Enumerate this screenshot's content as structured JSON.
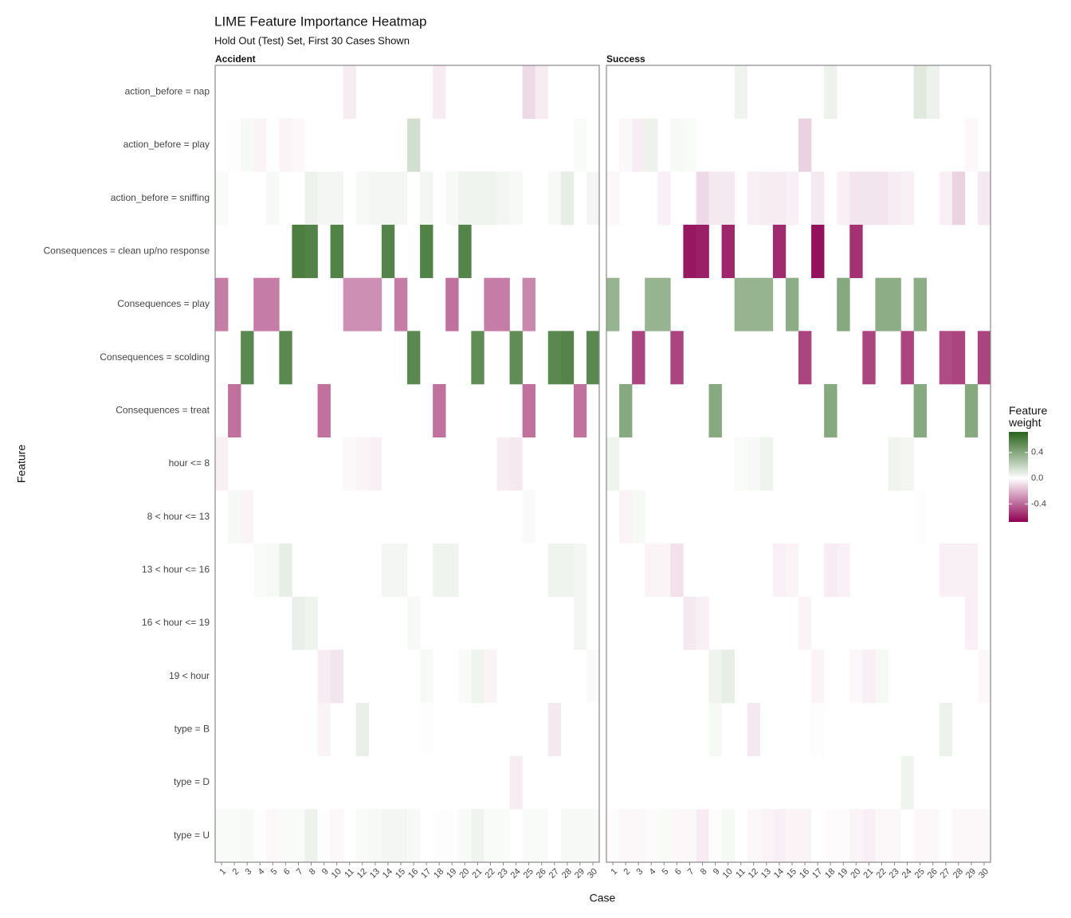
{
  "chart_data": {
    "type": "heatmap",
    "title": "LIME Feature Importance Heatmap",
    "subtitle": "Hold Out (Test) Set, First 30 Cases Shown",
    "x_label": "Case",
    "y_label": "Feature",
    "legend_title": "Feature weight",
    "low_color": "#8e0152",
    "mid_color": "#ffffff",
    "high_color": "#276419",
    "clim": [
      -0.68,
      0.72
    ],
    "cticks": [
      -0.4,
      {
        "value": 0,
        "label": "0.0"
      },
      0.4
    ],
    "features": [
      "action_before = nap",
      "action_before = play",
      "action_before = sniffing",
      "Consequences = clean up/no response",
      "Consequences = play",
      "Consequences = scolding",
      "Consequences = treat",
      "hour <= 8",
      "8 < hour <= 13",
      "13 < hour <= 16",
      "16 < hour <= 19",
      "19 < hour",
      "type = B",
      "type = D",
      "type = U"
    ],
    "columns": [
      1,
      2,
      3,
      4,
      5,
      6,
      7,
      8,
      9,
      10,
      11,
      12,
      13,
      14,
      15,
      16,
      17,
      18,
      19,
      20,
      21,
      22,
      23,
      24,
      25,
      26,
      27,
      28,
      29,
      30
    ],
    "panels": [
      {
        "name": "Accident",
        "values": [
          [
            null,
            null,
            null,
            null,
            null,
            null,
            null,
            null,
            null,
            null,
            -0.05,
            null,
            null,
            null,
            null,
            null,
            null,
            -0.05,
            null,
            null,
            null,
            null,
            null,
            null,
            -0.1,
            -0.05,
            null,
            null,
            null,
            null
          ],
          [
            null,
            0.01,
            0.03,
            -0.03,
            null,
            -0.03,
            -0.02,
            null,
            null,
            null,
            null,
            null,
            null,
            null,
            null,
            0.15,
            null,
            null,
            null,
            null,
            null,
            null,
            null,
            null,
            null,
            null,
            null,
            null,
            0.02,
            null
          ],
          [
            0.02,
            null,
            null,
            null,
            0.03,
            null,
            null,
            0.06,
            0.04,
            0.04,
            null,
            0.03,
            0.04,
            0.04,
            0.04,
            null,
            0.04,
            null,
            0.03,
            0.05,
            0.05,
            0.05,
            0.04,
            0.03,
            null,
            null,
            0.03,
            0.08,
            null,
            0.04
          ],
          [
            null,
            null,
            null,
            null,
            null,
            null,
            0.6,
            0.58,
            null,
            0.58,
            null,
            null,
            null,
            0.57,
            null,
            null,
            0.58,
            null,
            null,
            0.57,
            null,
            null,
            null,
            null,
            null,
            null,
            null,
            null,
            null,
            null
          ],
          [
            -0.35,
            null,
            null,
            -0.35,
            -0.35,
            null,
            null,
            null,
            null,
            null,
            -0.3,
            -0.3,
            -0.3,
            null,
            -0.35,
            null,
            null,
            null,
            -0.38,
            null,
            null,
            -0.35,
            -0.35,
            null,
            -0.32,
            null,
            null,
            null,
            null,
            null
          ],
          [
            null,
            null,
            0.55,
            null,
            null,
            0.55,
            null,
            null,
            null,
            null,
            null,
            null,
            null,
            null,
            null,
            0.55,
            null,
            null,
            null,
            null,
            0.53,
            null,
            null,
            0.53,
            null,
            null,
            0.55,
            0.57,
            null,
            0.55
          ],
          [
            null,
            -0.38,
            null,
            null,
            null,
            null,
            null,
            null,
            -0.38,
            null,
            null,
            null,
            null,
            null,
            null,
            null,
            null,
            -0.38,
            null,
            null,
            null,
            null,
            null,
            null,
            -0.38,
            null,
            null,
            null,
            -0.38,
            null
          ],
          [
            -0.04,
            null,
            null,
            null,
            null,
            null,
            null,
            null,
            null,
            null,
            -0.02,
            -0.03,
            -0.04,
            null,
            null,
            null,
            null,
            null,
            null,
            null,
            null,
            null,
            -0.05,
            -0.06,
            null,
            null,
            null,
            null,
            null,
            null
          ],
          [
            null,
            0.03,
            -0.03,
            null,
            null,
            null,
            null,
            null,
            null,
            null,
            null,
            null,
            null,
            null,
            null,
            null,
            null,
            null,
            null,
            null,
            null,
            null,
            null,
            null,
            0.02,
            null,
            null,
            null,
            null,
            null
          ],
          [
            null,
            null,
            null,
            0.02,
            0.03,
            0.08,
            null,
            null,
            null,
            null,
            null,
            null,
            null,
            0.04,
            0.04,
            null,
            null,
            0.05,
            0.05,
            null,
            null,
            null,
            null,
            null,
            null,
            null,
            0.05,
            0.05,
            0.04,
            null
          ],
          [
            null,
            null,
            null,
            null,
            null,
            null,
            0.07,
            0.05,
            null,
            null,
            null,
            null,
            null,
            null,
            null,
            0.03,
            null,
            null,
            null,
            null,
            null,
            null,
            null,
            null,
            null,
            null,
            null,
            null,
            0.04,
            null
          ],
          [
            null,
            null,
            null,
            null,
            null,
            null,
            null,
            null,
            -0.05,
            -0.07,
            null,
            null,
            null,
            null,
            null,
            null,
            0.03,
            null,
            null,
            0.02,
            0.05,
            -0.03,
            null,
            null,
            null,
            null,
            null,
            null,
            null,
            0.02
          ],
          [
            null,
            null,
            null,
            null,
            null,
            null,
            null,
            null,
            -0.03,
            null,
            null,
            0.07,
            null,
            null,
            null,
            null,
            0.01,
            null,
            null,
            null,
            null,
            null,
            null,
            null,
            null,
            null,
            -0.06,
            null,
            null,
            null
          ],
          [
            null,
            null,
            null,
            null,
            null,
            null,
            null,
            null,
            null,
            null,
            null,
            null,
            null,
            null,
            null,
            null,
            null,
            null,
            null,
            null,
            null,
            null,
            null,
            -0.05,
            null,
            null,
            null,
            null,
            null,
            null
          ],
          [
            0.02,
            0.02,
            0.03,
            0.01,
            -0.02,
            0.02,
            0.02,
            0.06,
            0.01,
            -0.02,
            null,
            0.02,
            0.03,
            0.04,
            0.04,
            0.03,
            null,
            0.01,
            0.01,
            0.02,
            0.05,
            0.02,
            0.02,
            null,
            0.02,
            0.02,
            null,
            0.03,
            0.03,
            0.03
          ]
        ]
      },
      {
        "name": "Success",
        "values": [
          [
            null,
            null,
            null,
            null,
            null,
            null,
            null,
            null,
            null,
            null,
            0.05,
            null,
            null,
            null,
            null,
            null,
            null,
            0.06,
            null,
            null,
            null,
            null,
            null,
            null,
            0.1,
            0.06,
            null,
            null,
            null,
            null
          ],
          [
            null,
            -0.02,
            -0.05,
            0.06,
            null,
            0.03,
            0.02,
            null,
            null,
            null,
            null,
            null,
            null,
            null,
            null,
            -0.12,
            null,
            null,
            null,
            null,
            null,
            null,
            null,
            null,
            null,
            null,
            null,
            null,
            -0.02,
            null
          ],
          [
            -0.02,
            null,
            null,
            null,
            -0.04,
            null,
            null,
            -0.1,
            -0.06,
            -0.06,
            null,
            -0.04,
            -0.05,
            -0.05,
            -0.04,
            null,
            -0.06,
            null,
            -0.04,
            -0.07,
            -0.07,
            -0.07,
            -0.05,
            -0.04,
            null,
            null,
            -0.04,
            -0.12,
            null,
            -0.06
          ],
          [
            null,
            null,
            null,
            null,
            null,
            null,
            -0.62,
            -0.6,
            null,
            -0.58,
            null,
            null,
            null,
            -0.57,
            null,
            null,
            -0.64,
            null,
            null,
            -0.55,
            null,
            null,
            null,
            null,
            null,
            null,
            null,
            null,
            null,
            null
          ],
          [
            0.35,
            null,
            null,
            0.35,
            0.35,
            null,
            null,
            null,
            null,
            null,
            0.35,
            0.35,
            0.35,
            null,
            0.38,
            null,
            null,
            null,
            0.4,
            null,
            null,
            0.38,
            0.38,
            null,
            0.38,
            null,
            null,
            null,
            null,
            null
          ],
          [
            null,
            null,
            -0.5,
            null,
            null,
            -0.5,
            null,
            null,
            null,
            null,
            null,
            null,
            null,
            null,
            null,
            -0.5,
            null,
            null,
            null,
            null,
            -0.5,
            null,
            null,
            -0.5,
            null,
            null,
            -0.48,
            -0.5,
            null,
            -0.5
          ],
          [
            null,
            0.4,
            null,
            null,
            null,
            null,
            null,
            null,
            0.4,
            null,
            null,
            null,
            null,
            null,
            null,
            null,
            null,
            0.4,
            null,
            null,
            null,
            null,
            null,
            null,
            0.4,
            null,
            null,
            null,
            0.4,
            null
          ],
          [
            0.05,
            null,
            null,
            null,
            null,
            null,
            null,
            null,
            null,
            null,
            0.02,
            0.03,
            0.05,
            null,
            null,
            null,
            null,
            null,
            null,
            null,
            null,
            null,
            0.05,
            0.04,
            null,
            null,
            null,
            null,
            null,
            null
          ],
          [
            null,
            -0.03,
            0.03,
            null,
            null,
            null,
            null,
            null,
            null,
            null,
            null,
            null,
            null,
            null,
            null,
            null,
            null,
            null,
            null,
            null,
            null,
            null,
            null,
            null,
            0.01,
            null,
            null,
            null,
            null,
            null
          ],
          [
            null,
            null,
            null,
            -0.03,
            -0.03,
            -0.08,
            null,
            null,
            null,
            null,
            null,
            null,
            null,
            -0.04,
            -0.03,
            null,
            null,
            -0.05,
            -0.04,
            null,
            null,
            null,
            null,
            null,
            null,
            null,
            -0.04,
            -0.04,
            -0.04,
            null
          ],
          [
            null,
            null,
            null,
            null,
            null,
            null,
            -0.06,
            -0.04,
            null,
            null,
            null,
            null,
            null,
            null,
            null,
            -0.03,
            null,
            null,
            null,
            null,
            null,
            null,
            null,
            null,
            null,
            null,
            null,
            null,
            -0.04,
            null
          ],
          [
            null,
            null,
            null,
            null,
            null,
            null,
            null,
            null,
            0.05,
            0.08,
            null,
            null,
            null,
            null,
            null,
            null,
            -0.03,
            null,
            null,
            -0.02,
            -0.04,
            0.03,
            null,
            null,
            null,
            null,
            null,
            null,
            null,
            -0.02
          ],
          [
            null,
            null,
            null,
            null,
            null,
            null,
            null,
            null,
            0.03,
            null,
            null,
            -0.06,
            null,
            null,
            null,
            null,
            0.01,
            null,
            null,
            null,
            null,
            null,
            null,
            null,
            null,
            null,
            0.06,
            null,
            null,
            null
          ],
          [
            null,
            null,
            null,
            null,
            null,
            null,
            null,
            null,
            null,
            null,
            null,
            null,
            null,
            null,
            null,
            null,
            null,
            null,
            null,
            null,
            null,
            null,
            null,
            0.05,
            null,
            null,
            null,
            null,
            null,
            null
          ],
          [
            -0.01,
            -0.02,
            -0.02,
            -0.01,
            0.02,
            -0.02,
            -0.02,
            -0.05,
            0.01,
            0.03,
            null,
            -0.02,
            -0.03,
            -0.04,
            -0.03,
            -0.03,
            null,
            -0.01,
            -0.01,
            -0.03,
            -0.04,
            -0.02,
            -0.02,
            null,
            -0.02,
            -0.02,
            null,
            -0.02,
            -0.02,
            -0.02
          ]
        ]
      }
    ]
  }
}
